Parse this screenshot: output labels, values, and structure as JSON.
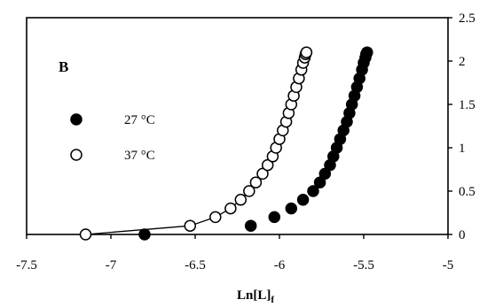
{
  "chart_data": {
    "type": "scatter",
    "panel_label": "B",
    "xlabel": "Ln[L]",
    "xlabel_subscript": "f",
    "ylabel": "",
    "xlim": [
      -7.5,
      -5
    ],
    "ylim": [
      0,
      2.5
    ],
    "x_ticks": [
      "-7.5",
      "-7",
      "-6.5",
      "-6",
      "-5.5",
      "-5"
    ],
    "y_ticks": [
      "0",
      "0.5",
      "1",
      "1.5",
      "2",
      "2.5"
    ],
    "y_axis_side": "right",
    "legend_position": "left",
    "series": [
      {
        "name": "27 °C",
        "marker": "filled-circle",
        "color": "#000000",
        "line": false,
        "points": [
          [
            -6.8,
            0.0
          ],
          [
            -6.17,
            0.1
          ],
          [
            -6.03,
            0.2
          ],
          [
            -5.93,
            0.3
          ],
          [
            -5.86,
            0.4
          ],
          [
            -5.8,
            0.5
          ],
          [
            -5.76,
            0.6
          ],
          [
            -5.73,
            0.7
          ],
          [
            -5.7,
            0.8
          ],
          [
            -5.68,
            0.9
          ],
          [
            -5.66,
            1.0
          ],
          [
            -5.64,
            1.1
          ],
          [
            -5.62,
            1.2
          ],
          [
            -5.6,
            1.3
          ],
          [
            -5.585,
            1.4
          ],
          [
            -5.57,
            1.5
          ],
          [
            -5.555,
            1.6
          ],
          [
            -5.54,
            1.7
          ],
          [
            -5.525,
            1.8
          ],
          [
            -5.51,
            1.9
          ],
          [
            -5.5,
            1.98
          ],
          [
            -5.49,
            2.04
          ],
          [
            -5.485,
            2.08
          ],
          [
            -5.48,
            2.1
          ]
        ]
      },
      {
        "name": "37 °C",
        "marker": "open-circle",
        "color": "#000000",
        "line": true,
        "points": [
          [
            -7.15,
            0.0
          ],
          [
            -6.53,
            0.1
          ],
          [
            -6.38,
            0.2
          ],
          [
            -6.29,
            0.3
          ],
          [
            -6.23,
            0.4
          ],
          [
            -6.18,
            0.5
          ],
          [
            -6.14,
            0.6
          ],
          [
            -6.1,
            0.7
          ],
          [
            -6.07,
            0.8
          ],
          [
            -6.04,
            0.9
          ],
          [
            -6.02,
            1.0
          ],
          [
            -6.0,
            1.1
          ],
          [
            -5.98,
            1.2
          ],
          [
            -5.96,
            1.3
          ],
          [
            -5.945,
            1.4
          ],
          [
            -5.93,
            1.5
          ],
          [
            -5.915,
            1.6
          ],
          [
            -5.9,
            1.7
          ],
          [
            -5.885,
            1.8
          ],
          [
            -5.87,
            1.9
          ],
          [
            -5.86,
            1.98
          ],
          [
            -5.85,
            2.04
          ],
          [
            -5.845,
            2.08
          ],
          [
            -5.84,
            2.1
          ]
        ]
      }
    ]
  }
}
